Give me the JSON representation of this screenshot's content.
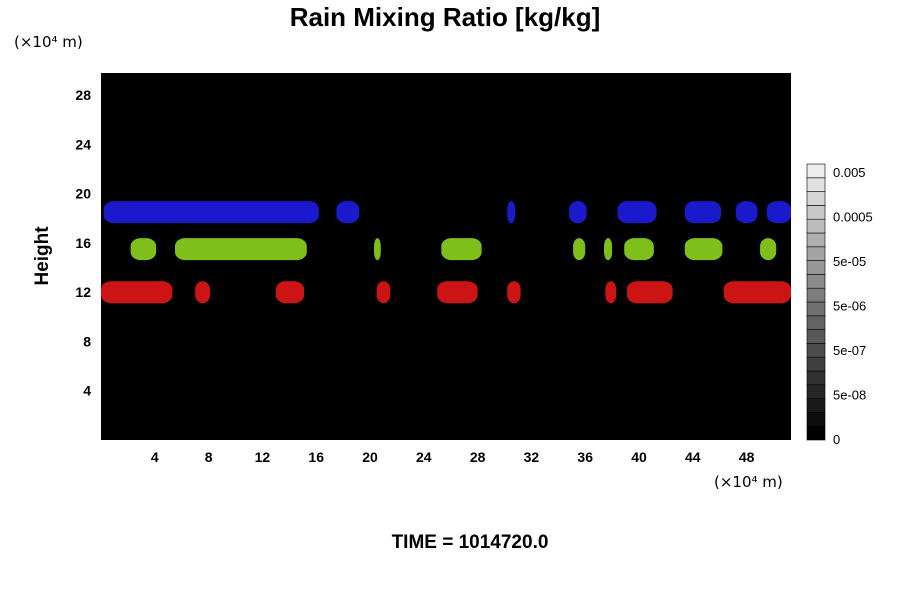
{
  "chart_data": {
    "type": "heatmap",
    "title": "Rain Mixing Ratio [kg/kg]",
    "ylabel": "Height",
    "xlabel": "",
    "x_unit": "(×10⁴ m)",
    "y_unit": "(×10⁴ m)",
    "xlim": [
      0,
      51.3
    ],
    "ylim": [
      0,
      29.8
    ],
    "x_ticks": [
      "4",
      "8",
      "12",
      "16",
      "20",
      "24",
      "28",
      "32",
      "36",
      "40",
      "44",
      "48"
    ],
    "y_ticks": [
      "4",
      "8",
      "12",
      "16",
      "20",
      "24",
      "28"
    ],
    "background": "#000000",
    "colorbar": {
      "labels": [
        "0",
        "5e-08",
        "5e-07",
        "5e-06",
        "5e-05",
        "0.0005",
        "0.005"
      ],
      "levels": 20,
      "colors": [
        "#000000",
        "#ffffff"
      ]
    },
    "features": [
      {
        "color": "#1a1acc",
        "level": 18.5,
        "x": [
          0.2,
          16.2,
          17.5,
          19.2,
          30.2,
          30.8,
          34.8,
          36.1,
          38.4,
          41.3,
          43.4,
          46.1,
          47.2,
          48.8,
          49.5,
          51.3
        ]
      },
      {
        "color": "#7fbf1a",
        "level": 15.5,
        "x": [
          2.2,
          4.1,
          5.5,
          15.3,
          20.3,
          20.8,
          25.3,
          28.3,
          35.1,
          36.0,
          37.4,
          38.0,
          38.9,
          41.1,
          43.4,
          46.2,
          49.0,
          50.2
        ]
      },
      {
        "color": "#cc1414",
        "level": 12.0,
        "x": [
          0.0,
          5.3,
          7.0,
          8.1,
          13.0,
          15.1,
          20.5,
          21.5,
          25.0,
          28.0,
          30.2,
          31.2,
          37.5,
          38.3,
          39.1,
          42.5,
          46.3,
          51.3
        ]
      }
    ]
  },
  "footer": {
    "time_label": "TIME = 1014720.0"
  }
}
